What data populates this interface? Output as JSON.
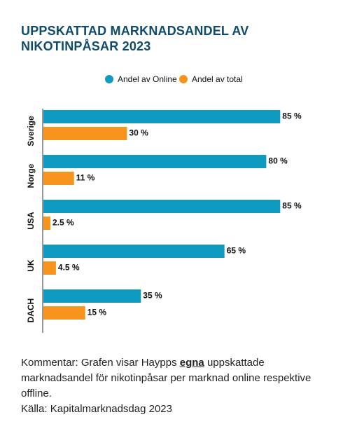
{
  "chart_data": {
    "type": "bar",
    "orientation": "horizontal",
    "title": "UPPSKATTAD MARKNADSANDEL AV NIKOTINPÅSAR 2023",
    "categories": [
      "Sverige",
      "Norge",
      "USA",
      "UK",
      "DACH"
    ],
    "series": [
      {
        "name": "Andel av Online",
        "color": "#0e9bbf",
        "values": [
          85,
          80,
          85,
          65,
          35
        ],
        "value_labels": [
          "85 %",
          "80 %",
          "85 %",
          "65 %",
          "35 %"
        ]
      },
      {
        "name": "Andel av total",
        "color": "#f7941d",
        "values": [
          30,
          11,
          2.5,
          4.5,
          15
        ],
        "value_labels": [
          "30 %",
          "11 %",
          "2.5 %",
          "4.5 %",
          "15 %"
        ]
      }
    ],
    "xlim": [
      0,
      100
    ],
    "legend": "top",
    "comment": {
      "before": "Kommentar: Grafen visar Haypps ",
      "emphasis": "egna",
      "after": " uppskattade marknadsandel för nikotinpåsar per marknad online respektive offline."
    },
    "source": "Källa: Kapitalmarknadsdag 2023"
  }
}
